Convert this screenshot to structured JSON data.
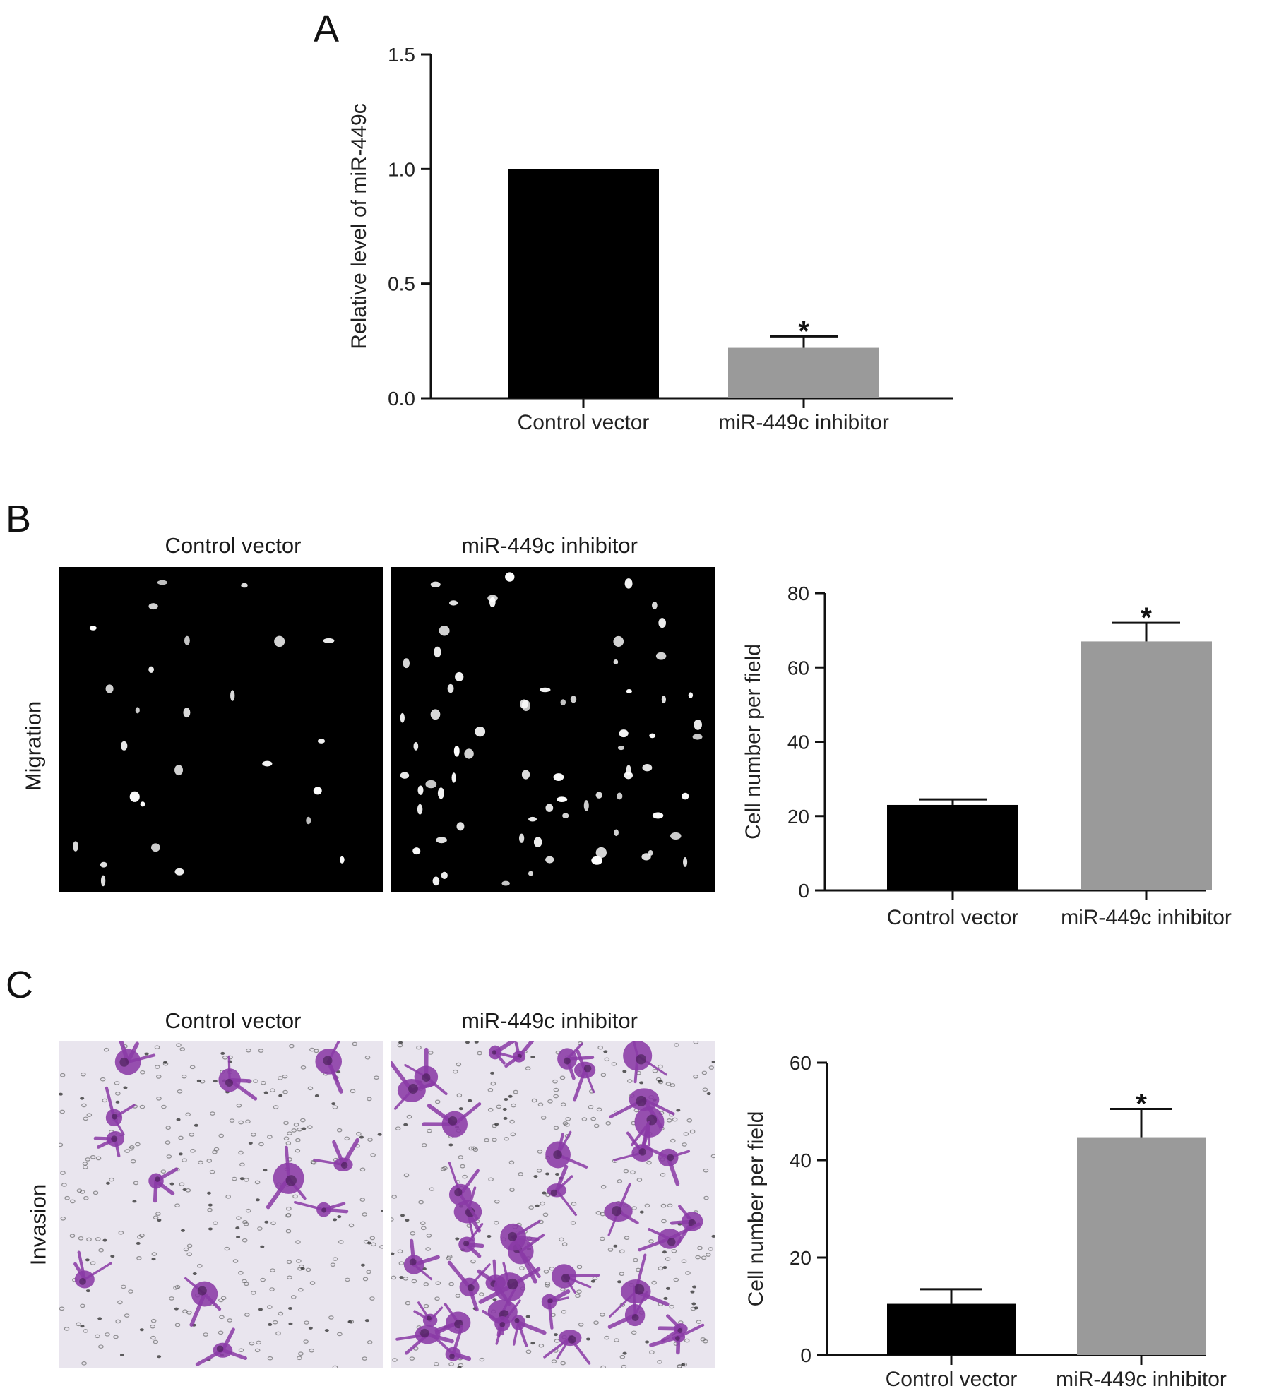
{
  "panels": {
    "A": {
      "letter": "A"
    },
    "B": {
      "letter": "B",
      "row_label": "Migration",
      "image_titles": [
        "Control vector",
        "miR-449c inhibitor"
      ]
    },
    "C": {
      "letter": "C",
      "row_label": "Invasion",
      "image_titles": [
        "Control vector",
        "miR-449c inhibitor"
      ]
    }
  },
  "colors": {
    "control_bar": "#000000",
    "inhibitor_bar": "#9a9a9a",
    "migration_bg": "#000000",
    "migration_cells": "#ffffff",
    "invasion_bg": "#e9e5ee",
    "invasion_cells": "#8a3aa6"
  },
  "chart_data": [
    {
      "id": "A",
      "type": "bar",
      "categories": [
        "Control vector",
        "miR-449c inhibitor"
      ],
      "values": [
        1.0,
        0.22
      ],
      "error": [
        0.0,
        0.05
      ],
      "significance": [
        "",
        "*"
      ],
      "ylabel": "Relative level of miR-449c",
      "xlabel": "",
      "ylim": [
        0,
        1.5
      ],
      "yticks": [
        "0.0",
        "0.5",
        "1.0",
        "1.5"
      ]
    },
    {
      "id": "B",
      "type": "bar",
      "categories": [
        "Control vector",
        "miR-449c inhibitor"
      ],
      "values": [
        23,
        67
      ],
      "error": [
        1.5,
        5
      ],
      "significance": [
        "",
        "*"
      ],
      "ylabel": "Cell number per field",
      "xlabel": "",
      "ylim": [
        0,
        80
      ],
      "yticks": [
        "0",
        "20",
        "40",
        "60",
        "80"
      ]
    },
    {
      "id": "C",
      "type": "bar",
      "categories": [
        "Control vector",
        "miR-449c inhibitor"
      ],
      "values": [
        10.5,
        44.7
      ],
      "error": [
        3,
        5.8
      ],
      "significance": [
        "",
        "*"
      ],
      "ylabel": "Cell number per field",
      "xlabel": "",
      "ylim": [
        0,
        60
      ],
      "yticks": [
        "0",
        "20",
        "40",
        "60"
      ]
    }
  ]
}
